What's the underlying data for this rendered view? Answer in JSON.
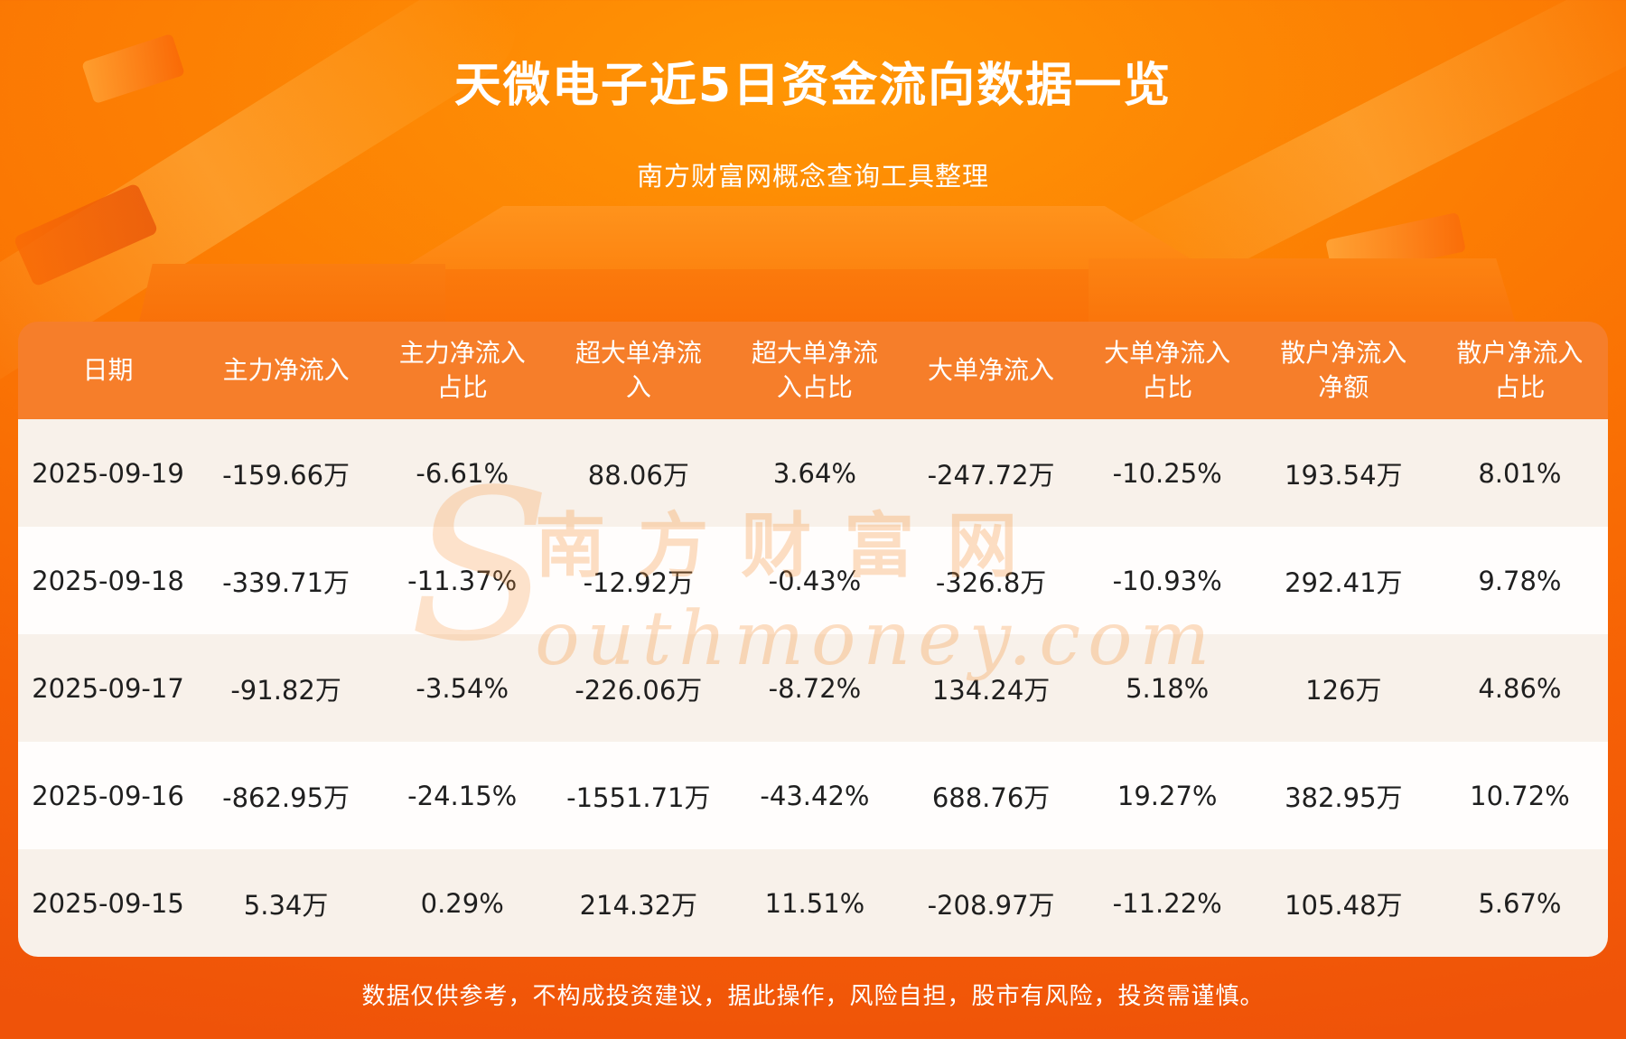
{
  "page": {
    "title": "天微电子近5日资金流向数据一览",
    "subtitle": "南方财富网概念查询工具整理",
    "footer": "数据仅供参考，不构成投资建议，据此操作，风险自担，股市有风险，投资需谨慎。"
  },
  "watermark": {
    "initial": "S",
    "cn": "南方财富网",
    "en": "outhmoney.com"
  },
  "colors": {
    "background_orange": "#fb7803",
    "table_header_orange": "#f67e2a",
    "row_light": "#f8f1ea",
    "row_white": "#fffdfc",
    "text_dark": "#1f1f1f",
    "watermark_orange": "#f6963c"
  },
  "chart_data": {
    "type": "table",
    "title": "天微电子近5日资金流向数据一览",
    "columns": [
      "日期",
      "主力净流入",
      "主力净流入占比",
      "超大单净流入",
      "超大单净流入占比",
      "大单净流入",
      "大单净流入占比",
      "散户净流入净额",
      "散户净流入占比"
    ],
    "rows": [
      [
        "2025-09-19",
        "-159.66万",
        "-6.61%",
        "88.06万",
        "3.64%",
        "-247.72万",
        "-10.25%",
        "193.54万",
        "8.01%"
      ],
      [
        "2025-09-18",
        "-339.71万",
        "-11.37%",
        "-12.92万",
        "-0.43%",
        "-326.8万",
        "-10.93%",
        "292.41万",
        "9.78%"
      ],
      [
        "2025-09-17",
        "-91.82万",
        "-3.54%",
        "-226.06万",
        "-8.72%",
        "134.24万",
        "5.18%",
        "126万",
        "4.86%"
      ],
      [
        "2025-09-16",
        "-862.95万",
        "-24.15%",
        "-1551.71万",
        "-43.42%",
        "688.76万",
        "19.27%",
        "382.95万",
        "10.72%"
      ],
      [
        "2025-09-15",
        "5.34万",
        "0.29%",
        "214.32万",
        "11.51%",
        "-208.97万",
        "-11.22%",
        "105.48万",
        "5.67%"
      ]
    ]
  },
  "table": {
    "headers": [
      "日期",
      "主力净流入",
      "主力净流入占比",
      "超大单净流入",
      "超大单净流入占比",
      "大单净流入",
      "大单净流入占比",
      "散户净流入净额",
      "散户净流入占比"
    ],
    "rows": [
      [
        "2025-09-19",
        "-159.66万",
        "-6.61%",
        "88.06万",
        "3.64%",
        "-247.72万",
        "-10.25%",
        "193.54万",
        "8.01%"
      ],
      [
        "2025-09-18",
        "-339.71万",
        "-11.37%",
        "-12.92万",
        "-0.43%",
        "-326.8万",
        "-10.93%",
        "292.41万",
        "9.78%"
      ],
      [
        "2025-09-17",
        "-91.82万",
        "-3.54%",
        "-226.06万",
        "-8.72%",
        "134.24万",
        "5.18%",
        "126万",
        "4.86%"
      ],
      [
        "2025-09-16",
        "-862.95万",
        "-24.15%",
        "-1551.71万",
        "-43.42%",
        "688.76万",
        "19.27%",
        "382.95万",
        "10.72%"
      ],
      [
        "2025-09-15",
        "5.34万",
        "0.29%",
        "214.32万",
        "11.51%",
        "-208.97万",
        "-11.22%",
        "105.48万",
        "5.67%"
      ]
    ]
  }
}
